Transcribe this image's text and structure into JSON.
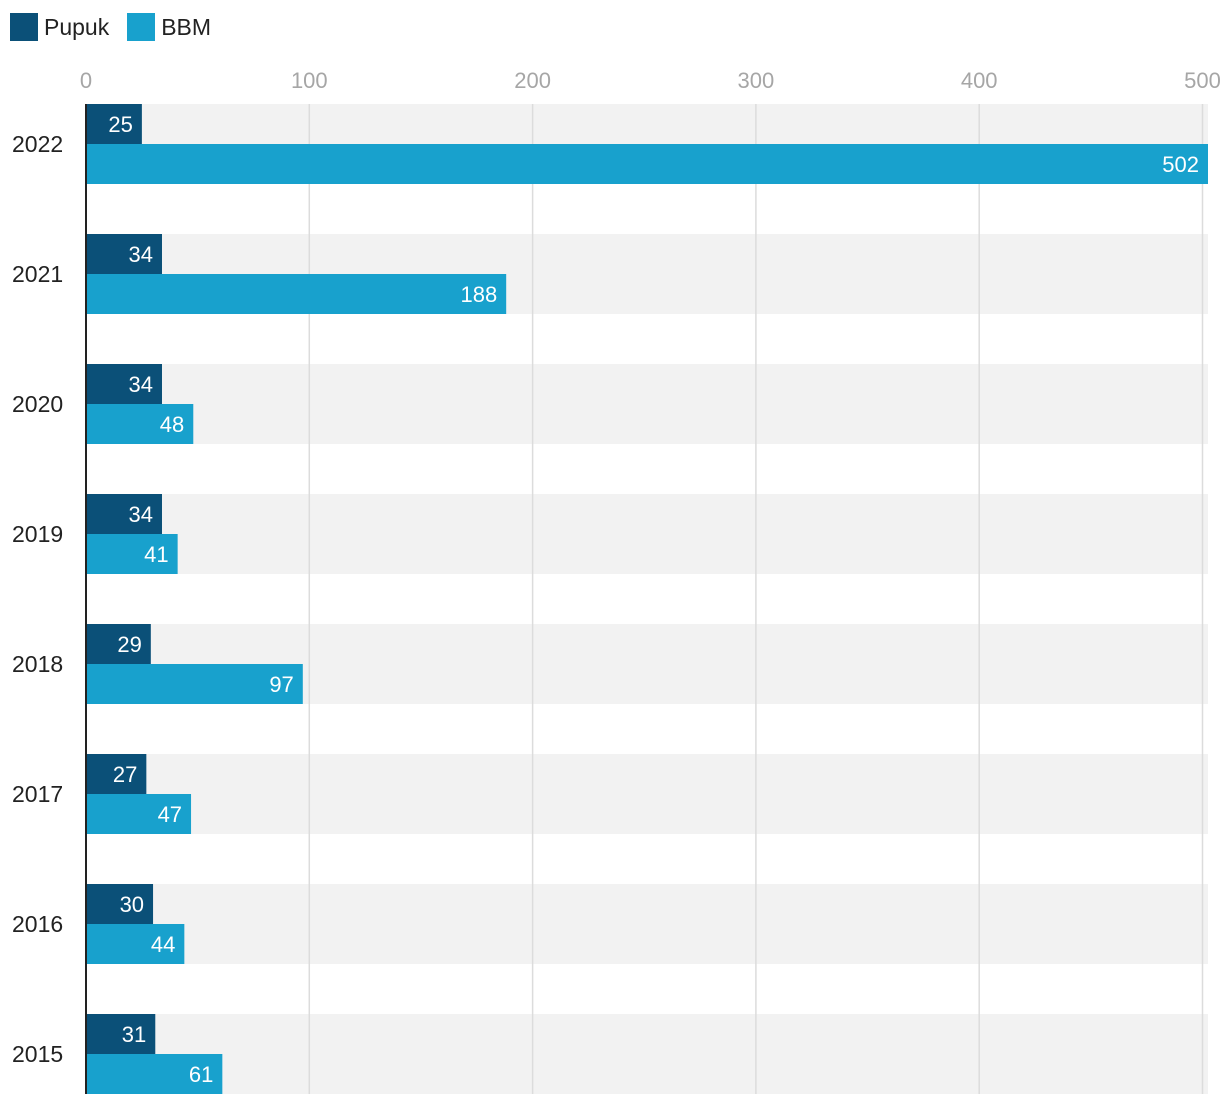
{
  "colors": {
    "pupuk": "#0b5078",
    "bbm": "#18a1cd",
    "band": "#f2f2f2",
    "grid": "#dcdcdc",
    "tick": "#a6a6a6",
    "axis": "#222222",
    "label_dark": "#ffffff"
  },
  "legend": [
    {
      "label": "Pupuk",
      "color": "#0b5078"
    },
    {
      "label": "BBM",
      "color": "#18a1cd"
    }
  ],
  "chart_data": {
    "type": "bar",
    "orientation": "horizontal",
    "categories": [
      "2022",
      "2021",
      "2020",
      "2019",
      "2018",
      "2017",
      "2016",
      "2015"
    ],
    "series": [
      {
        "name": "Pupuk",
        "color": "#0b5078",
        "values": [
          25,
          34,
          34,
          34,
          29,
          27,
          30,
          31
        ]
      },
      {
        "name": "BBM",
        "color": "#18a1cd",
        "values": [
          502,
          188,
          48,
          41,
          97,
          47,
          44,
          61
        ]
      }
    ],
    "xlim": [
      0,
      502
    ],
    "xticks": [
      "0",
      "100",
      "200",
      "300",
      "400",
      "500"
    ],
    "tick_values": [
      0,
      100,
      200,
      300,
      400,
      500
    ],
    "grid": true,
    "legend_position": "top-left",
    "data_labels": true
  }
}
